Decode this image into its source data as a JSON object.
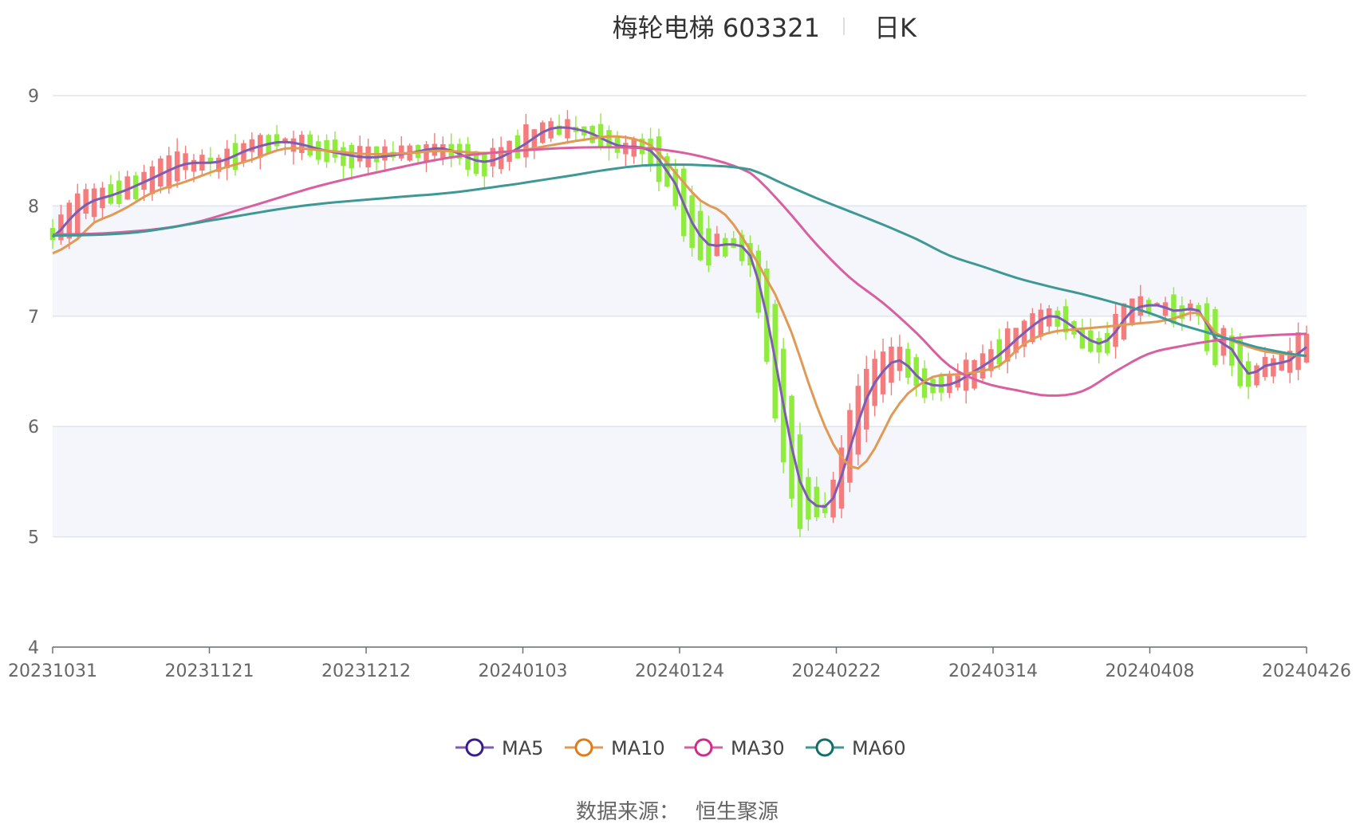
{
  "header": {
    "stock": "梅轮电梯 603321",
    "period": "日K"
  },
  "footer": {
    "source_label": "数据来源：",
    "source_name": "恒生聚源"
  },
  "colors": {
    "up": "#f47c7c",
    "down": "#8fec3c",
    "MA5": "#7e5bb5",
    "MA10": "#e09a55",
    "MA30": "#d85fa0",
    "MA60": "#3e9896",
    "legend_MA5": "#3a1d8c",
    "legend_MA10": "#e07b18",
    "legend_MA30": "#d02a8a",
    "legend_MA60": "#126e6a"
  },
  "chart_data": {
    "type": "candlestick",
    "x_tick_labels": [
      "20231031",
      "20231121",
      "20231212",
      "20240103",
      "20240124",
      "20240222",
      "20240314",
      "20240408",
      "20240426"
    ],
    "y_ticks": [
      4,
      5,
      6,
      7,
      8,
      9
    ],
    "ylim": [
      4,
      9
    ],
    "grid": true,
    "legend_position": "bottom",
    "series": [
      {
        "name": "MA5",
        "anchors": [
          [
            0,
            7.72
          ],
          [
            3,
            7.95
          ],
          [
            5,
            8.05
          ],
          [
            8,
            8.12
          ],
          [
            12,
            8.25
          ],
          [
            16,
            8.38
          ],
          [
            20,
            8.4
          ],
          [
            24,
            8.52
          ],
          [
            28,
            8.58
          ],
          [
            33,
            8.5
          ],
          [
            38,
            8.44
          ],
          [
            43,
            8.48
          ],
          [
            47,
            8.52
          ],
          [
            52,
            8.4
          ],
          [
            56,
            8.52
          ],
          [
            60,
            8.7
          ],
          [
            64,
            8.68
          ],
          [
            68,
            8.55
          ],
          [
            72,
            8.5
          ],
          [
            75,
            8.2
          ],
          [
            77,
            7.85
          ],
          [
            79,
            7.65
          ],
          [
            82,
            7.65
          ],
          [
            84,
            7.55
          ],
          [
            86,
            7.0
          ],
          [
            88,
            6.2
          ],
          [
            90,
            5.5
          ],
          [
            92,
            5.28
          ],
          [
            94,
            5.35
          ],
          [
            96,
            5.8
          ],
          [
            98,
            6.25
          ],
          [
            100,
            6.5
          ],
          [
            102,
            6.6
          ],
          [
            105,
            6.4
          ],
          [
            108,
            6.38
          ],
          [
            111,
            6.5
          ],
          [
            114,
            6.65
          ],
          [
            117,
            6.85
          ],
          [
            120,
            7.0
          ],
          [
            122,
            6.95
          ],
          [
            125,
            6.78
          ],
          [
            127,
            6.78
          ],
          [
            130,
            7.05
          ],
          [
            133,
            7.1
          ],
          [
            135,
            7.05
          ],
          [
            138,
            7.05
          ],
          [
            140,
            6.8
          ],
          [
            142,
            6.7
          ],
          [
            144,
            6.48
          ],
          [
            146,
            6.55
          ],
          [
            149,
            6.6
          ],
          [
            151,
            6.72
          ]
        ]
      },
      {
        "name": "MA10",
        "anchors": [
          [
            0,
            7.57
          ],
          [
            3,
            7.7
          ],
          [
            5,
            7.85
          ],
          [
            8,
            7.95
          ],
          [
            12,
            8.12
          ],
          [
            16,
            8.22
          ],
          [
            20,
            8.33
          ],
          [
            24,
            8.42
          ],
          [
            28,
            8.52
          ],
          [
            33,
            8.5
          ],
          [
            38,
            8.47
          ],
          [
            43,
            8.48
          ],
          [
            47,
            8.5
          ],
          [
            52,
            8.48
          ],
          [
            56,
            8.5
          ],
          [
            60,
            8.55
          ],
          [
            64,
            8.6
          ],
          [
            68,
            8.63
          ],
          [
            72,
            8.55
          ],
          [
            75,
            8.3
          ],
          [
            78,
            8.05
          ],
          [
            81,
            7.92
          ],
          [
            84,
            7.6
          ],
          [
            87,
            7.2
          ],
          [
            89,
            6.85
          ],
          [
            91,
            6.4
          ],
          [
            93,
            6.0
          ],
          [
            95,
            5.72
          ],
          [
            97,
            5.62
          ],
          [
            99,
            5.8
          ],
          [
            101,
            6.1
          ],
          [
            103,
            6.3
          ],
          [
            106,
            6.45
          ],
          [
            110,
            6.48
          ],
          [
            114,
            6.55
          ],
          [
            117,
            6.75
          ],
          [
            120,
            6.85
          ],
          [
            123,
            6.88
          ],
          [
            126,
            6.9
          ],
          [
            130,
            6.93
          ],
          [
            133,
            6.95
          ],
          [
            135,
            6.98
          ],
          [
            138,
            7.03
          ],
          [
            140,
            6.85
          ],
          [
            143,
            6.75
          ],
          [
            146,
            6.68
          ],
          [
            151,
            6.64
          ]
        ]
      },
      {
        "name": "MA30",
        "anchors": [
          [
            0,
            7.74
          ],
          [
            8,
            7.76
          ],
          [
            16,
            7.83
          ],
          [
            24,
            8.0
          ],
          [
            32,
            8.18
          ],
          [
            40,
            8.32
          ],
          [
            48,
            8.44
          ],
          [
            56,
            8.5
          ],
          [
            64,
            8.53
          ],
          [
            72,
            8.52
          ],
          [
            78,
            8.45
          ],
          [
            84,
            8.3
          ],
          [
            88,
            8.0
          ],
          [
            92,
            7.65
          ],
          [
            96,
            7.35
          ],
          [
            100,
            7.12
          ],
          [
            104,
            6.85
          ],
          [
            108,
            6.55
          ],
          [
            112,
            6.4
          ],
          [
            116,
            6.33
          ],
          [
            120,
            6.28
          ],
          [
            124,
            6.32
          ],
          [
            128,
            6.5
          ],
          [
            132,
            6.66
          ],
          [
            136,
            6.73
          ],
          [
            140,
            6.78
          ],
          [
            145,
            6.82
          ],
          [
            151,
            6.84
          ]
        ]
      },
      {
        "name": "MA60",
        "anchors": [
          [
            0,
            7.73
          ],
          [
            10,
            7.76
          ],
          [
            20,
            7.88
          ],
          [
            30,
            8.0
          ],
          [
            40,
            8.07
          ],
          [
            48,
            8.12
          ],
          [
            56,
            8.2
          ],
          [
            62,
            8.27
          ],
          [
            68,
            8.34
          ],
          [
            72,
            8.37
          ],
          [
            78,
            8.37
          ],
          [
            84,
            8.33
          ],
          [
            88,
            8.2
          ],
          [
            92,
            8.07
          ],
          [
            96,
            7.95
          ],
          [
            100,
            7.83
          ],
          [
            104,
            7.7
          ],
          [
            108,
            7.55
          ],
          [
            112,
            7.45
          ],
          [
            116,
            7.35
          ],
          [
            120,
            7.27
          ],
          [
            124,
            7.2
          ],
          [
            128,
            7.12
          ],
          [
            132,
            7.03
          ],
          [
            136,
            6.92
          ],
          [
            140,
            6.83
          ],
          [
            145,
            6.72
          ],
          [
            151,
            6.64
          ]
        ]
      }
    ]
  }
}
